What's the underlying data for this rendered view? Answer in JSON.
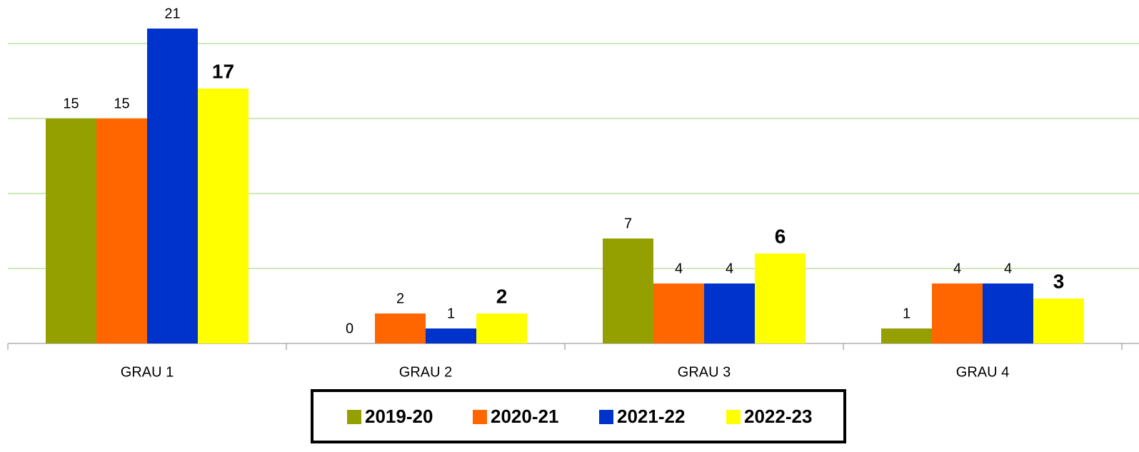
{
  "chart_data": {
    "type": "bar",
    "categories": [
      "GRAU 1",
      "GRAU 2",
      "GRAU 3",
      "GRAU 4"
    ],
    "series": [
      {
        "name": "2019-20",
        "color": "#949f00",
        "values": [
          15,
          0,
          7,
          1
        ]
      },
      {
        "name": "2020-21",
        "color": "#ff6600",
        "values": [
          15,
          2,
          4,
          4
        ]
      },
      {
        "name": "2021-22",
        "color": "#0033cc",
        "values": [
          21,
          1,
          4,
          4
        ]
      },
      {
        "name": "2022-23",
        "color": "#ffff00",
        "values": [
          17,
          2,
          6,
          3
        ]
      }
    ],
    "ylim": [
      0,
      23
    ],
    "yticks": [
      0,
      5,
      10,
      15,
      20
    ],
    "grid": true,
    "legend": "bottom"
  }
}
